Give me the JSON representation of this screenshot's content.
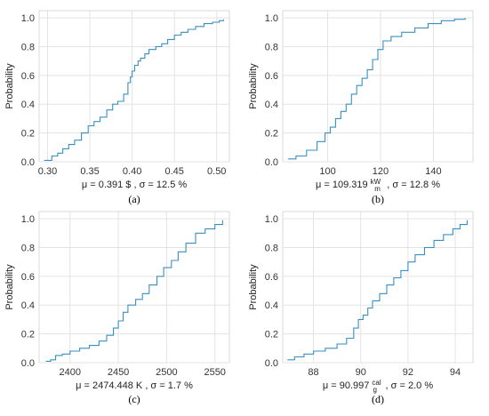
{
  "figure": {
    "line_color": "#3a8fc0",
    "panels": [
      {
        "caption": "(a)",
        "summary": {
          "mu_prefix": "μ =  0.391 $",
          "sigma_text": " , σ =  12.5 %"
        },
        "chart_data": {
          "type": "line",
          "ylabel": "Probability",
          "xlim": [
            0.29,
            0.515
          ],
          "ylim": [
            0,
            1.05
          ],
          "xticks": [
            0.3,
            0.35,
            0.4,
            0.45,
            0.5
          ],
          "xtick_labels": [
            "0.30",
            "0.35",
            "0.40",
            "0.45",
            "0.50"
          ],
          "yticks": [
            0.0,
            0.2,
            0.4,
            0.6,
            0.8,
            1.0
          ],
          "ytick_labels": [
            "0.0",
            "0.2",
            "0.4",
            "0.6",
            "0.8",
            "1.0"
          ],
          "grid": true,
          "series": [
            {
              "x": [
                0.296,
                0.305,
                0.312,
                0.318,
                0.325,
                0.332,
                0.34,
                0.348,
                0.355,
                0.362,
                0.37,
                0.377,
                0.383,
                0.39,
                0.395,
                0.398,
                0.4,
                0.403,
                0.407,
                0.41,
                0.415,
                0.42,
                0.428,
                0.435,
                0.442,
                0.45,
                0.458,
                0.466,
                0.475,
                0.485,
                0.495,
                0.503,
                0.508
              ],
              "y": [
                0.01,
                0.04,
                0.06,
                0.09,
                0.12,
                0.15,
                0.2,
                0.25,
                0.28,
                0.31,
                0.36,
                0.4,
                0.42,
                0.47,
                0.55,
                0.59,
                0.63,
                0.67,
                0.7,
                0.72,
                0.75,
                0.78,
                0.8,
                0.82,
                0.85,
                0.88,
                0.9,
                0.92,
                0.94,
                0.96,
                0.97,
                0.98,
                0.99
              ]
            }
          ]
        }
      },
      {
        "caption": "(b)",
        "summary": {
          "mu_prefix": "μ =  109.319",
          "unit_num": "kW",
          "unit_den": "m",
          "sigma_text": " , σ =  12.8 %"
        },
        "chart_data": {
          "type": "line",
          "ylabel": "Probability",
          "xlim": [
            83,
            155
          ],
          "ylim": [
            0,
            1.05
          ],
          "xticks": [
            100,
            120,
            140
          ],
          "xtick_labels": [
            "100",
            "120",
            "140"
          ],
          "yticks": [
            0.0,
            0.2,
            0.4,
            0.6,
            0.8,
            1.0
          ],
          "ytick_labels": [
            "0.0",
            "0.2",
            "0.4",
            "0.6",
            "0.8",
            "1.0"
          ],
          "grid": true,
          "series": [
            {
              "x": [
                85,
                88,
                92,
                96,
                99,
                101,
                103,
                105,
                107,
                109,
                111,
                113,
                115,
                117,
                119,
                121,
                124,
                128,
                133,
                138,
                143,
                148,
                152
              ],
              "y": [
                0.02,
                0.04,
                0.08,
                0.14,
                0.2,
                0.24,
                0.3,
                0.35,
                0.4,
                0.47,
                0.53,
                0.58,
                0.64,
                0.71,
                0.78,
                0.84,
                0.87,
                0.9,
                0.93,
                0.96,
                0.98,
                0.99,
                1.0
              ]
            }
          ]
        }
      },
      {
        "caption": "(c)",
        "summary": {
          "mu_prefix": "μ =  2474.448 K",
          "sigma_text": " , σ =  1.7 %"
        },
        "chart_data": {
          "type": "line",
          "ylabel": "Probability",
          "xlim": [
            2368,
            2565
          ],
          "ylim": [
            0,
            1.05
          ],
          "xticks": [
            2400,
            2450,
            2500,
            2550
          ],
          "xtick_labels": [
            "2400",
            "2450",
            "2500",
            "2550"
          ],
          "yticks": [
            0.0,
            0.2,
            0.4,
            0.6,
            0.8,
            1.0
          ],
          "ytick_labels": [
            "0.0",
            "0.2",
            "0.4",
            "0.6",
            "0.8",
            "1.0"
          ],
          "grid": true,
          "series": [
            {
              "x": [
                2375,
                2380,
                2385,
                2392,
                2400,
                2410,
                2420,
                2430,
                2438,
                2445,
                2450,
                2455,
                2460,
                2468,
                2475,
                2482,
                2490,
                2497,
                2505,
                2512,
                2520,
                2530,
                2540,
                2550,
                2558
              ],
              "y": [
                0.01,
                0.02,
                0.05,
                0.06,
                0.08,
                0.1,
                0.12,
                0.15,
                0.19,
                0.24,
                0.29,
                0.35,
                0.4,
                0.44,
                0.48,
                0.54,
                0.6,
                0.66,
                0.71,
                0.77,
                0.83,
                0.9,
                0.93,
                0.96,
                0.99
              ]
            }
          ]
        }
      },
      {
        "caption": "(d)",
        "summary": {
          "mu_prefix": "μ =  90.997",
          "unit_num": "cal",
          "unit_den": "g",
          "sigma_text": " , σ =  2.0 %"
        },
        "chart_data": {
          "type": "line",
          "ylabel": "Probability",
          "xlim": [
            86.7,
            94.75
          ],
          "ylim": [
            0,
            1.05
          ],
          "xticks": [
            88,
            90,
            92,
            94
          ],
          "xtick_labels": [
            "88",
            "90",
            "92",
            "94"
          ],
          "yticks": [
            0.0,
            0.2,
            0.4,
            0.6,
            0.8,
            1.0
          ],
          "ytick_labels": [
            "0.0",
            "0.2",
            "0.4",
            "0.6",
            "0.8",
            "1.0"
          ],
          "grid": true,
          "series": [
            {
              "x": [
                86.9,
                87.2,
                87.6,
                88.0,
                88.5,
                89.0,
                89.4,
                89.7,
                89.9,
                90.1,
                90.3,
                90.5,
                90.8,
                91.1,
                91.4,
                91.7,
                92.0,
                92.3,
                92.7,
                93.1,
                93.5,
                93.9,
                94.2,
                94.5
              ],
              "y": [
                0.02,
                0.04,
                0.06,
                0.08,
                0.1,
                0.13,
                0.17,
                0.24,
                0.3,
                0.33,
                0.38,
                0.43,
                0.48,
                0.54,
                0.59,
                0.64,
                0.7,
                0.75,
                0.8,
                0.85,
                0.89,
                0.93,
                0.96,
                0.99
              ]
            }
          ]
        }
      }
    ]
  }
}
